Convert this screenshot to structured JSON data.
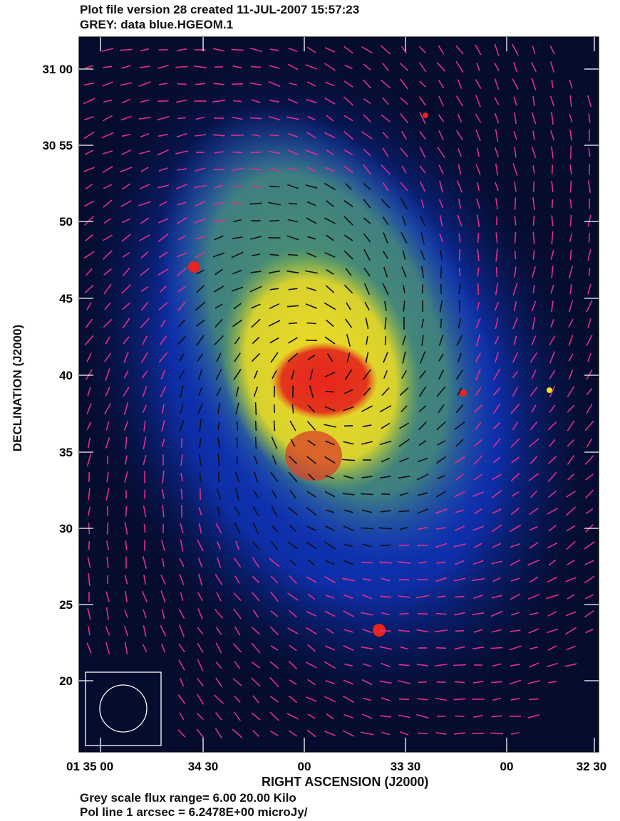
{
  "header": {
    "line1": "Plot file version 28  created 11-JUL-2007 15:57:23",
    "line2": "GREY: data  blue.HGEOM.1"
  },
  "footer": {
    "line1": "Grey scale flux range= 6.00 20.00 Kilo",
    "line2": "Pol line 1 arcsec =  6.2478E+00 microJy/"
  },
  "chart_data": {
    "type": "heatmap",
    "title": "",
    "xlabel": "RIGHT ASCENSION (J2000)",
    "ylabel": "DECLINATION (J2000)",
    "x_ticks": [
      "01 35 00",
      "34 30",
      "00",
      "33 30",
      "00",
      "32 30"
    ],
    "y_ticks": [
      "31 00",
      "30 55",
      "50",
      "45",
      "40",
      "35",
      "30",
      "25",
      "20"
    ],
    "color_scale": "grey scale flux 6.00 to 20.00 Kilo (pseudocolor: blue → green → yellow → red)",
    "colors": {
      "background": "#050c2e",
      "low": "#0a2a9a",
      "mid": "#5fa85a",
      "high": "#f2e21a",
      "peak": "#e8241c",
      "vectors_outer": "#e0308a",
      "vectors_inner": "#111111"
    },
    "beam": "circle, lower-left box"
  }
}
